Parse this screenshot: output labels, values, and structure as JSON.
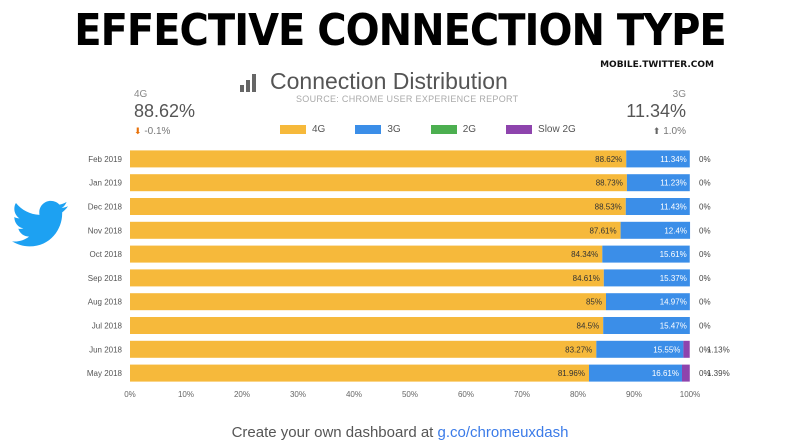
{
  "headline": "EFFECTIVE CONNECTION TYPE",
  "site_url": "MOBILE.TWITTER.COM",
  "chart_title": "Connection Distribution",
  "chart_source": "SOURCE: CHROME USER EXPERIENCE REPORT",
  "summary_left": {
    "label": "4G",
    "value": "88.62%",
    "change": "-0.1%",
    "arrow": "down-arrow",
    "arrow_color": "#e8710a"
  },
  "summary_right": {
    "label": "3G",
    "value": "11.34%",
    "change": "1.0%",
    "arrow": "up-arrow",
    "arrow_color": "#666666"
  },
  "logo_icon": "twitter-bird-icon",
  "logo_color": "#1da1f2",
  "footer": {
    "text": "Create your own dashboard at ",
    "link": "g.co/chromeuxdash"
  },
  "chart_data": {
    "type": "bar",
    "orientation": "horizontal",
    "stacked": true,
    "categories": [
      "Feb 2019",
      "Jan 2019",
      "Dec 2018",
      "Nov 2018",
      "Oct 2018",
      "Sep 2018",
      "Aug 2018",
      "Jul 2018",
      "Jun 2018",
      "May 2018"
    ],
    "series": [
      {
        "name": "4G",
        "color": "#f6b93b",
        "values": [
          88.62,
          88.73,
          88.53,
          87.61,
          84.34,
          84.61,
          85,
          84.5,
          83.27,
          81.96
        ],
        "labels": [
          "88.62%",
          "88.73%",
          "88.53%",
          "87.61%",
          "84.34%",
          "84.61%",
          "85%",
          "84.5%",
          "83.27%",
          "81.96%"
        ]
      },
      {
        "name": "3G",
        "color": "#3b8ee8",
        "values": [
          11.34,
          11.23,
          11.43,
          12.4,
          15.61,
          15.37,
          14.97,
          15.47,
          15.55,
          16.61
        ],
        "labels": [
          "11.34%",
          "11.23%",
          "11.43%",
          "12.4%",
          "15.61%",
          "15.37%",
          "14.97%",
          "15.47%",
          "15.55%",
          "16.61%"
        ]
      },
      {
        "name": "2G",
        "color": "#4caf50",
        "values": [
          0,
          0,
          0,
          0,
          0,
          0,
          0,
          0,
          0,
          0
        ],
        "labels": [
          "0%",
          "0%",
          "0%",
          "0%",
          "0%",
          "0%",
          "0%",
          "0%",
          "0%",
          "0%"
        ]
      },
      {
        "name": "Slow 2G",
        "color": "#8e44ad",
        "values": [
          0,
          0,
          0,
          0,
          0,
          0,
          0,
          0,
          1.13,
          1.39
        ],
        "labels": [
          "",
          "",
          "",
          "",
          "",
          "",
          "",
          "",
          "1.13%",
          "1.39%"
        ]
      }
    ],
    "xlim": [
      0,
      100
    ],
    "xticks": [
      "0%",
      "10%",
      "20%",
      "30%",
      "40%",
      "50%",
      "60%",
      "70%",
      "80%",
      "90%",
      "100%"
    ],
    "legend_position": "top",
    "grid": false
  }
}
